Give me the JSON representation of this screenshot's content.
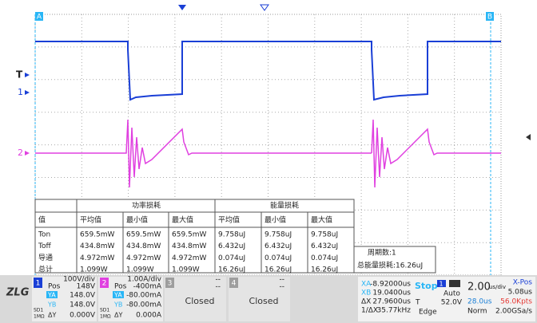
{
  "screen": {
    "cursor_a": "A",
    "cursor_b": "B",
    "trigger_label": "T",
    "ch1_label": "1",
    "ch2_label": "2"
  },
  "table": {
    "group_headers": [
      "功率损耗",
      "能量损耗"
    ],
    "columns": [
      "值",
      "平均值",
      "最小值",
      "最大值",
      "平均值",
      "最小值",
      "最大值"
    ],
    "rows": [
      [
        "Ton",
        "659.5mW",
        "659.5mW",
        "659.5mW",
        "9.758uJ",
        "9.758uJ",
        "9.758uJ"
      ],
      [
        "Toff",
        "434.8mW",
        "434.8mW",
        "434.8mW",
        "6.432uJ",
        "6.432uJ",
        "6.432uJ"
      ],
      [
        "导通",
        "4.972mW",
        "4.972mW",
        "4.972mW",
        "0.074uJ",
        "0.074uJ",
        "0.074uJ"
      ],
      [
        "总计",
        "1.099W",
        "1.099W",
        "1.099W",
        "16.26uJ",
        "16.26uJ",
        "16.26uJ"
      ]
    ]
  },
  "summary": {
    "cycles": "周期数:1",
    "total_energy": "总能量损耗:16.26uJ"
  },
  "logo": "ZLG",
  "channels": [
    {
      "number": "1",
      "scale": "100V/div",
      "pos_label": "Pos",
      "pos": "148V",
      "ya_label": "YA",
      "ya": "148.0V",
      "yb_label": "YB",
      "yb": "148.0V",
      "dy_label": "ΔY",
      "dy": "0.000V",
      "coupling": "SD1",
      "impedance": "1MΩ"
    },
    {
      "number": "2",
      "scale": "1.00A/div",
      "pos_label": "Pos",
      "pos": "-400mA",
      "ya_label": "YA",
      "ya": "-80.00mA",
      "yb_label": "YB",
      "yb": "-80.00mA",
      "dy_label": "ΔY",
      "dy": "0.000A",
      "coupling": "SD1",
      "impedance": "1MΩ"
    }
  ],
  "closed_channels": [
    {
      "number": "3",
      "line1": "--",
      "line2": "--",
      "status": "Closed"
    },
    {
      "number": "4",
      "line1": "--",
      "line2": "--",
      "status": "Closed"
    }
  ],
  "cursor": {
    "xa_label": "XA",
    "xa": "-8.92000us",
    "xb_label": "XB",
    "xb": "19.0400us",
    "dx_label": "ΔX",
    "dx": "27.9600us",
    "freq_label": "1/ΔX",
    "freq": "35.77kHz"
  },
  "trigger": {
    "state": "Stop",
    "source": "1",
    "mode": "Auto",
    "level_label": "T",
    "level": "52.0V",
    "type": "Edge"
  },
  "timebase": {
    "scale": "2.00",
    "unit": "us/div",
    "xpos_label": "X-Pos",
    "xpos": "5.08us",
    "window": "28.0us",
    "memory": "56.0Kpts",
    "acq": "Norm",
    "rate": "2.00GSa/s"
  }
}
